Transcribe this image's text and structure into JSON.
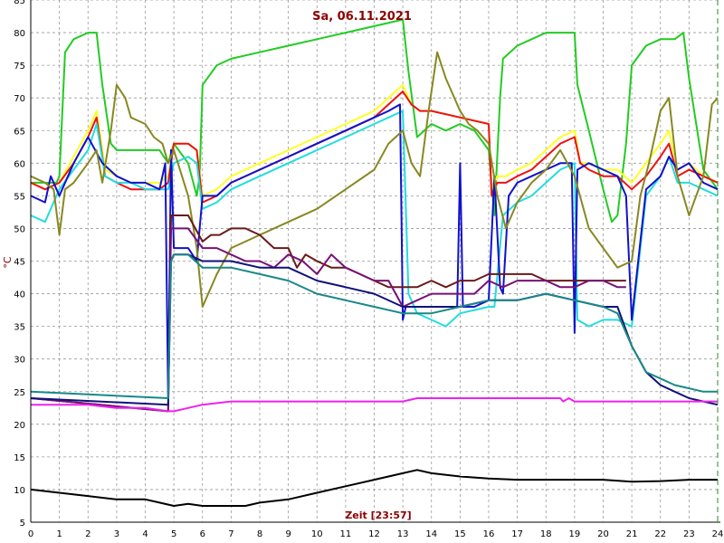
{
  "chart_data": {
    "type": "line",
    "title": "Sa, 06.11.2021",
    "xlabel": "Zeit [23:57]",
    "ylabel": "°C",
    "xlim": [
      0,
      24
    ],
    "ylim": [
      5,
      85
    ],
    "xticks": [
      "0",
      "1",
      "2",
      "3",
      "4",
      "5",
      "6",
      "7",
      "8",
      "9",
      "10",
      "11",
      "12",
      "13",
      "14",
      "15",
      "16",
      "17",
      "18",
      "19",
      "20",
      "21",
      "22",
      "23",
      "24"
    ],
    "yticks": [
      "5",
      "10",
      "15",
      "20",
      "25",
      "30",
      "35",
      "40",
      "45",
      "50",
      "55",
      "60",
      "65",
      "70",
      "75",
      "80",
      "85"
    ],
    "grid": true,
    "series": [
      {
        "color": "#22cc22",
        "x": [
          0,
          0.9,
          1.0,
          1.2,
          1.5,
          2.0,
          2.3,
          2.5,
          2.8,
          3.0,
          3.5,
          4.0,
          4.5,
          4.8,
          5.0,
          5.5,
          5.8,
          5.9,
          6.0,
          6.5,
          7.0,
          8.0,
          9.0,
          10.0,
          11.0,
          12.0,
          13.0,
          13.2,
          13.5,
          14.0,
          14.5,
          15.0,
          15.5,
          16.0,
          16.2,
          16.4,
          16.5,
          17.0,
          17.5,
          18.0,
          18.5,
          19.0,
          19.1,
          19.5,
          20.0,
          20.3,
          20.5,
          20.8,
          21.0,
          21.5,
          22.0,
          22.5,
          22.8,
          23.0,
          23.5,
          24.0
        ],
        "y": [
          57,
          57,
          58,
          77,
          79,
          80,
          80,
          72,
          63,
          62,
          62,
          62,
          62,
          60,
          63,
          60,
          55,
          58,
          72,
          75,
          76,
          77,
          78,
          79,
          80,
          81,
          82,
          74,
          64,
          66,
          65,
          66,
          65,
          62,
          52,
          70,
          76,
          78,
          79,
          80,
          80,
          80,
          72,
          65,
          56,
          51,
          52,
          63,
          75,
          78,
          79,
          79,
          80,
          73,
          59,
          56
        ]
      },
      {
        "color": "#ffff22",
        "x": [
          0,
          0.5,
          1.0,
          1.5,
          2.0,
          2.3,
          2.6,
          3.0,
          3.5,
          4.0,
          4.5,
          4.8,
          5.0,
          5.5,
          5.8,
          6.0,
          6.5,
          7.0,
          7.5,
          8.0,
          9.0,
          10.0,
          11.0,
          12.0,
          12.5,
          13.0,
          13.3,
          13.6,
          14.0,
          15.0,
          16.0,
          16.1,
          16.3,
          16.6,
          17.0,
          17.5,
          18.0,
          18.5,
          19.0,
          19.2,
          19.5,
          20.0,
          20.5,
          21.0,
          21.5,
          22.0,
          22.3,
          22.6,
          23.0,
          23.5,
          24.0
        ],
        "y": [
          57,
          56,
          57,
          61,
          65,
          68,
          59,
          58,
          57,
          57,
          57,
          58,
          63,
          63,
          62,
          55,
          56,
          58,
          59,
          60,
          62,
          64,
          66,
          68,
          70,
          72,
          69,
          68,
          68,
          67,
          66,
          56,
          58,
          58,
          59,
          60,
          62,
          64,
          65,
          60,
          60,
          59,
          59,
          57,
          60,
          63,
          65,
          59,
          60,
          58,
          57
        ]
      },
      {
        "color": "#ee1111",
        "x": [
          0,
          0.5,
          1.0,
          1.5,
          2.0,
          2.3,
          2.6,
          3.0,
          3.5,
          4.0,
          4.5,
          4.8,
          5.0,
          5.5,
          5.8,
          6.0,
          6.5,
          7.0,
          8.0,
          9.0,
          10.0,
          11.0,
          12.0,
          12.5,
          13.0,
          13.3,
          13.6,
          14.0,
          15.0,
          16.0,
          16.1,
          16.3,
          16.6,
          17.0,
          17.5,
          18.0,
          18.5,
          19.0,
          19.2,
          19.5,
          20.0,
          20.5,
          21.0,
          21.5,
          22.0,
          22.3,
          22.6,
          23.0,
          23.5,
          24.0
        ],
        "y": [
          57,
          56,
          57,
          60,
          64,
          67,
          58,
          57,
          56,
          56,
          56,
          57,
          63,
          63,
          62,
          54,
          55,
          57,
          59,
          61,
          63,
          65,
          67,
          69,
          71,
          69,
          68,
          68,
          67,
          66,
          55,
          57,
          57,
          58,
          59,
          61,
          63,
          64,
          60,
          59,
          58,
          58,
          56,
          58,
          61,
          63,
          58,
          59,
          58,
          57
        ]
      },
      {
        "color": "#22dddd",
        "x": [
          0,
          0.5,
          1.0,
          1.5,
          2.0,
          2.3,
          2.6,
          3.0,
          3.5,
          4.0,
          4.5,
          4.8,
          5.0,
          5.5,
          5.8,
          6.0,
          6.5,
          7.0,
          8.0,
          9.0,
          10.0,
          11.0,
          12.0,
          12.5,
          13.0,
          13.2,
          13.5,
          14.0,
          14.5,
          15.0,
          16.0,
          16.2,
          16.5,
          17.0,
          17.5,
          18.0,
          18.5,
          19.0,
          19.1,
          19.5,
          20.0,
          20.5,
          21.0,
          21.5,
          22.0,
          22.3,
          22.6,
          23.0,
          23.5,
          24.0
        ],
        "y": [
          52,
          51,
          56,
          59,
          62,
          66,
          58,
          57,
          57,
          56,
          56,
          56,
          60,
          61,
          60,
          53,
          54,
          56,
          58,
          60,
          62,
          64,
          66,
          67,
          68,
          40,
          37,
          36,
          35,
          37,
          38,
          38,
          52,
          54,
          55,
          57,
          59,
          60,
          36,
          35,
          36,
          36,
          35,
          55,
          58,
          61,
          57,
          57,
          56,
          55
        ]
      },
      {
        "color": "#1111cc",
        "x": [
          0,
          0.5,
          0.7,
          1.0,
          1.5,
          2.0,
          2.5,
          3.0,
          3.5,
          4.0,
          4.5,
          4.7,
          4.8,
          4.9,
          5.0,
          5.5,
          5.8,
          6.0,
          6.5,
          7.0,
          8.0,
          9.0,
          10.0,
          11.0,
          12.0,
          12.5,
          12.9,
          13.0,
          13.1,
          13.5,
          14.0,
          14.5,
          14.9,
          15.0,
          15.1,
          15.5,
          16.0,
          16.2,
          16.4,
          16.5,
          16.7,
          17.0,
          17.5,
          18.0,
          18.5,
          18.9,
          19.0,
          19.1,
          19.5,
          20.0,
          20.5,
          20.8,
          21.0,
          21.5,
          22.0,
          22.3,
          22.6,
          23.0,
          23.5,
          24.0
        ],
        "y": [
          55,
          54,
          58,
          55,
          60,
          64,
          60,
          58,
          57,
          57,
          56,
          60,
          24,
          62,
          47,
          47,
          45,
          55,
          55,
          57,
          59,
          61,
          63,
          65,
          67,
          68,
          69,
          36,
          38,
          38,
          38,
          38,
          38,
          60,
          38,
          38,
          39,
          58,
          41,
          40,
          55,
          57,
          58,
          59,
          60,
          60,
          34,
          59,
          60,
          59,
          58,
          55,
          36,
          56,
          58,
          61,
          59,
          60,
          57,
          56
        ]
      },
      {
        "color": "#888822",
        "x": [
          0,
          0.5,
          0.8,
          1.0,
          1.2,
          1.5,
          2.0,
          2.3,
          2.5,
          2.8,
          3.0,
          3.3,
          3.5,
          4.0,
          4.3,
          4.6,
          4.8,
          5.0,
          5.5,
          5.8,
          6.0,
          6.5,
          7.0,
          8.0,
          9.0,
          10.0,
          11.0,
          12.0,
          12.5,
          13.0,
          13.3,
          13.6,
          13.9,
          14.2,
          14.5,
          15.0,
          15.3,
          15.6,
          16.0,
          16.3,
          16.6,
          17.0,
          17.5,
          18.0,
          18.5,
          19.0,
          19.5,
          20.0,
          20.5,
          21.0,
          21.3,
          21.6,
          22.0,
          22.3,
          22.6,
          23.0,
          23.5,
          23.8,
          24.0
        ],
        "y": [
          58,
          57,
          56,
          49,
          56,
          57,
          60,
          62,
          57,
          65,
          72,
          70,
          67,
          66,
          64,
          63,
          60,
          62,
          55,
          47,
          38,
          43,
          47,
          49,
          51,
          53,
          56,
          59,
          63,
          65,
          60,
          58,
          68,
          77,
          73,
          68,
          66,
          65,
          63,
          55,
          50,
          54,
          57,
          59,
          62,
          58,
          50,
          47,
          44,
          45,
          55,
          60,
          68,
          70,
          58,
          52,
          58,
          69,
          70
        ]
      },
      {
        "color": "#6a1a1a",
        "x": [
          0,
          4.8,
          4.9,
          5.0,
          5.5,
          6.0,
          6.3,
          6.6,
          7.0,
          7.5,
          8.0,
          8.5,
          9.0,
          9.3,
          9.6,
          10.0,
          10.5,
          11.0,
          11.5,
          12.0,
          12.5,
          13.0,
          13.5,
          14.0,
          14.5,
          15.0,
          15.5,
          16.0,
          16.5,
          17.0,
          17.5,
          18.0,
          18.5,
          19.0,
          19.5,
          20.0,
          20.5,
          20.8
        ],
        "y": [
          24,
          22,
          52,
          52,
          52,
          48,
          49,
          49,
          50,
          50,
          49,
          47,
          47,
          44,
          46,
          45,
          44,
          44,
          43,
          42,
          41,
          41,
          41,
          42,
          41,
          42,
          42,
          43,
          43,
          43,
          43,
          42,
          42,
          42,
          42,
          42,
          42,
          42
        ]
      },
      {
        "color": "#771177",
        "x": [
          0,
          4.8,
          4.9,
          5.0,
          5.5,
          6.0,
          6.5,
          7.0,
          7.5,
          8.0,
          8.5,
          9.0,
          9.5,
          10.0,
          10.5,
          11.0,
          11.5,
          12.0,
          12.5,
          13.0,
          13.5,
          14.0,
          14.5,
          15.0,
          15.5,
          16.0,
          16.5,
          17.0,
          17.5,
          18.0,
          18.5,
          19.0,
          19.5,
          20.0,
          20.5,
          20.8
        ],
        "y": [
          24,
          22,
          50,
          50,
          50,
          47,
          47,
          46,
          45,
          45,
          44,
          46,
          45,
          43,
          46,
          44,
          43,
          42,
          42,
          38,
          39,
          40,
          40,
          40,
          40,
          42,
          41,
          42,
          42,
          42,
          41,
          41,
          42,
          42,
          41,
          41
        ]
      },
      {
        "color": "#11117a",
        "x": [
          0,
          4.8,
          4.9,
          5.0,
          5.5,
          6.0,
          6.5,
          7.0,
          8.0,
          9.0,
          10.0,
          11.0,
          12.0,
          13.0,
          13.5,
          14.0,
          15.0,
          16.0,
          17.0,
          18.0,
          19.0,
          20.0,
          20.5,
          21.0,
          21.5,
          22.0,
          22.5,
          23.0,
          23.5,
          24.0
        ],
        "y": [
          24,
          23,
          45,
          46,
          46,
          45,
          45,
          45,
          44,
          44,
          42,
          41,
          40,
          38,
          38,
          38,
          38,
          39,
          39,
          40,
          39,
          38,
          38,
          32,
          28,
          26,
          25,
          24,
          23.5,
          23
        ]
      },
      {
        "color": "#1a8888",
        "x": [
          0,
          4.8,
          4.9,
          5.0,
          5.5,
          6.0,
          6.5,
          7.0,
          8.0,
          9.0,
          10.0,
          11.0,
          12.0,
          13.0,
          13.5,
          14.0,
          15.0,
          16.0,
          17.0,
          18.0,
          19.0,
          20.0,
          20.5,
          21.0,
          21.5,
          22.0,
          22.5,
          23.0,
          23.5,
          24.0
        ],
        "y": [
          25,
          24,
          45,
          46,
          46,
          44,
          44,
          44,
          43,
          42,
          40,
          39,
          38,
          37,
          37,
          37,
          38,
          39,
          39,
          40,
          39,
          38,
          37,
          32,
          28,
          27,
          26,
          25.5,
          25,
          25
        ]
      },
      {
        "color": "#ee22ee",
        "x": [
          0,
          1,
          2,
          3,
          4,
          4.8,
          5.0,
          5.5,
          6.0,
          7.0,
          8.0,
          9.0,
          10.0,
          11.0,
          12.0,
          13.0,
          13.5,
          14.0,
          15.0,
          16.0,
          17.0,
          18.0,
          18.5,
          18.6,
          18.8,
          19.0,
          20.0,
          21.0,
          22.0,
          23.0,
          24.0
        ],
        "y": [
          23,
          23,
          23,
          22.5,
          22.5,
          22,
          22,
          22.5,
          23,
          23.5,
          23.5,
          23.5,
          23.5,
          23.5,
          23.5,
          23.5,
          24,
          24,
          24,
          24,
          24,
          24,
          24,
          23.5,
          24,
          23.5,
          23.5,
          23.5,
          23.5,
          23.5,
          23.5
        ]
      },
      {
        "color": "#000000",
        "x": [
          0,
          1,
          2,
          3,
          4,
          4.5,
          5.0,
          5.5,
          6,
          7,
          7.5,
          8,
          9,
          10,
          11,
          12,
          12.5,
          13,
          13.5,
          14,
          15,
          16,
          17,
          18,
          19,
          20,
          21,
          22,
          23,
          24
        ],
        "y": [
          10,
          9.5,
          9,
          8.5,
          8.5,
          8,
          7.5,
          7.8,
          7.5,
          7.5,
          7.5,
          8,
          8.5,
          9.5,
          10.5,
          11.5,
          12,
          12.5,
          13,
          12.5,
          12,
          11.7,
          11.5,
          11.5,
          11.5,
          11.5,
          11.2,
          11.3,
          11.5,
          11.5
        ]
      }
    ]
  }
}
